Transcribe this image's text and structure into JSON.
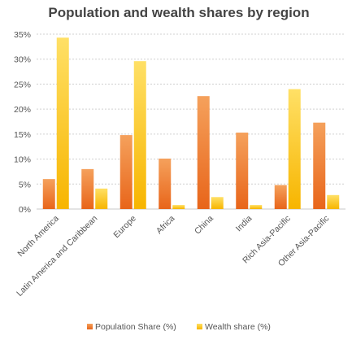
{
  "chart_data": {
    "type": "bar",
    "title": "Population and wealth shares by region",
    "xlabel": "",
    "ylabel": "",
    "ylim": [
      0,
      35
    ],
    "yticks": [
      "0%",
      "5%",
      "10%",
      "15%",
      "20%",
      "25%",
      "30%",
      "35%"
    ],
    "ytick_values": [
      0,
      5,
      10,
      15,
      20,
      25,
      30,
      35
    ],
    "categories": [
      "North America",
      "Latin America and Caribbean",
      "Europe",
      "Africa",
      "China",
      "India",
      "Rich Asia-Pacific",
      "Other Asia-Pacific"
    ],
    "series": [
      {
        "name": "Population Share (%)",
        "values": [
          6.0,
          8.0,
          14.8,
          10.1,
          22.6,
          15.3,
          4.8,
          17.3
        ]
      },
      {
        "name": "Wealth share (%)",
        "values": [
          34.3,
          4.1,
          29.6,
          0.8,
          2.4,
          0.8,
          24.0,
          2.8
        ]
      }
    ],
    "grid": true,
    "legend": "bottom"
  },
  "colors": {
    "population_top": "#f5a15c",
    "population_bottom": "#e8651a",
    "wealth_top": "#ffe066",
    "wealth_bottom": "#f7b500"
  }
}
